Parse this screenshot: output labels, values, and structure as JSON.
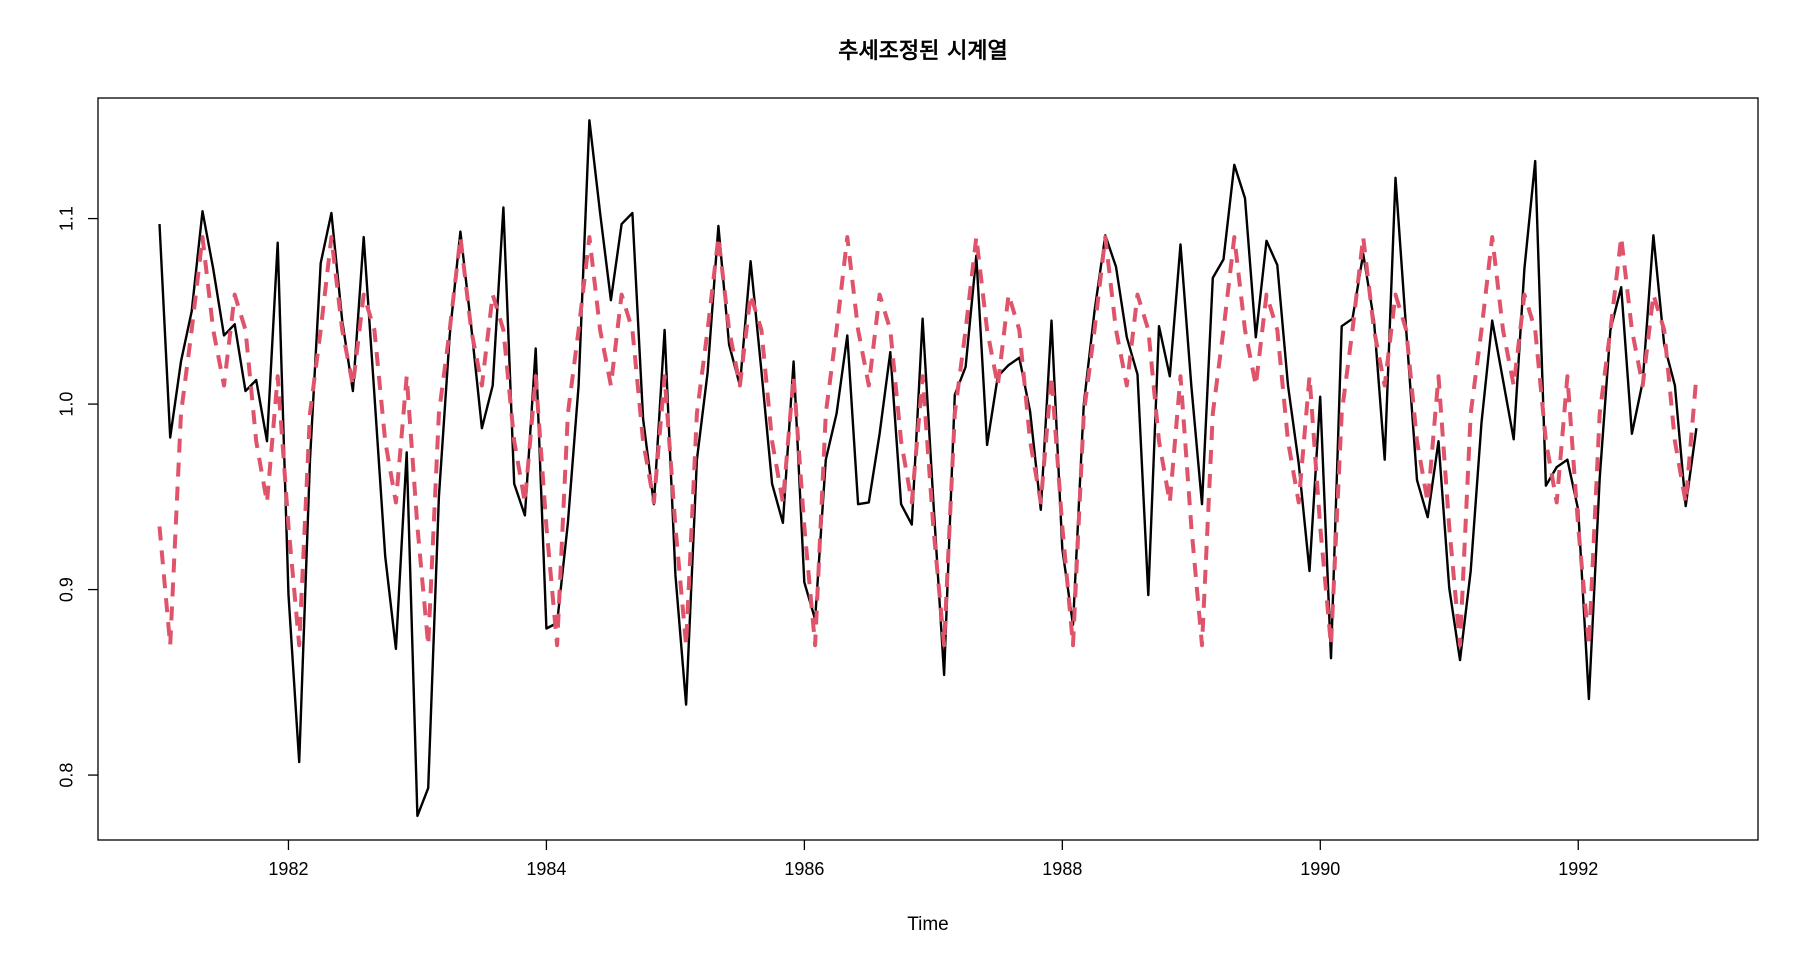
{
  "chart_data": {
    "type": "line",
    "title": "추세조정된 시계열",
    "xlabel": "Time",
    "ylabel": "",
    "xlim": [
      1981.0,
      1992.917
    ],
    "ylim": [
      0.765,
      1.165
    ],
    "x_ticks": [
      1982,
      1984,
      1986,
      1988,
      1990,
      1992
    ],
    "x_tick_labels": [
      "1982",
      "1984",
      "1986",
      "1988",
      "1990",
      "1992"
    ],
    "y_ticks": [
      0.8,
      0.9,
      1.0,
      1.1
    ],
    "y_tick_labels": [
      "0.8",
      "0.9",
      "1.0",
      "1.1"
    ],
    "grid": false,
    "legend": "none",
    "x_start": 1981.0,
    "x_step": 0.08333,
    "series": [
      {
        "style": "solid",
        "color": "#000000",
        "values": [
          1.097,
          0.982,
          1.023,
          1.05,
          1.104,
          1.073,
          1.037,
          1.043,
          1.007,
          1.013,
          0.98,
          1.087,
          0.897,
          0.807,
          0.97,
          1.076,
          1.103,
          1.045,
          1.007,
          1.09,
          1.005,
          0.918,
          0.868,
          0.974,
          0.778,
          0.793,
          0.95,
          1.037,
          1.093,
          1.042,
          0.987,
          1.01,
          1.106,
          0.957,
          0.94,
          1.03,
          0.879,
          0.882,
          0.936,
          1.01,
          1.153,
          1.103,
          1.056,
          1.097,
          1.103,
          0.992,
          0.946,
          1.04,
          0.908,
          0.838,
          0.97,
          1.017,
          1.096,
          1.032,
          1.01,
          1.077,
          1.018,
          0.957,
          0.936,
          1.023,
          0.904,
          0.884,
          0.97,
          0.995,
          1.037,
          0.946,
          0.947,
          0.984,
          1.028,
          0.946,
          0.935,
          1.046,
          0.948,
          0.854,
          1.005,
          1.02,
          1.08,
          0.978,
          1.015,
          1.021,
          1.025,
          0.996,
          0.943,
          1.045,
          0.922,
          0.881,
          1.0,
          1.05,
          1.091,
          1.074,
          1.036,
          1.016,
          0.897,
          1.042,
          1.015,
          1.086,
          1.01,
          0.946,
          1.068,
          1.078,
          1.129,
          1.111,
          1.036,
          1.088,
          1.075,
          1.01,
          0.968,
          0.91,
          1.004,
          0.863,
          1.042,
          1.046,
          1.081,
          1.045,
          0.97,
          1.122,
          1.04,
          0.959,
          0.939,
          0.98,
          0.901,
          0.862,
          0.91,
          0.99,
          1.045,
          1.013,
          0.981,
          1.073,
          1.131,
          0.956,
          0.966,
          0.97,
          0.943,
          0.841,
          0.96,
          1.04,
          1.063,
          0.984,
          1.012,
          1.091,
          1.032,
          1.01,
          0.945,
          0.987
        ]
      },
      {
        "style": "dashed",
        "color": "#DF536B",
        "values": [
          0.934,
          0.87,
          0.995,
          1.04,
          1.09,
          1.04,
          1.01,
          1.059,
          1.04,
          0.98,
          0.947,
          1.015,
          0.934,
          0.87,
          0.995,
          1.04,
          1.09,
          1.04,
          1.01,
          1.059,
          1.04,
          0.98,
          0.947,
          1.015,
          0.934,
          0.87,
          0.995,
          1.04,
          1.09,
          1.04,
          1.01,
          1.059,
          1.04,
          0.98,
          0.947,
          1.015,
          0.934,
          0.87,
          0.995,
          1.04,
          1.09,
          1.04,
          1.01,
          1.059,
          1.04,
          0.98,
          0.947,
          1.015,
          0.934,
          0.87,
          0.995,
          1.04,
          1.09,
          1.04,
          1.01,
          1.059,
          1.04,
          0.98,
          0.947,
          1.015,
          0.934,
          0.87,
          0.995,
          1.04,
          1.09,
          1.04,
          1.01,
          1.059,
          1.04,
          0.98,
          0.947,
          1.015,
          0.934,
          0.87,
          0.995,
          1.04,
          1.09,
          1.04,
          1.01,
          1.059,
          1.04,
          0.98,
          0.947,
          1.015,
          0.934,
          0.87,
          0.995,
          1.04,
          1.09,
          1.04,
          1.01,
          1.059,
          1.04,
          0.98,
          0.947,
          1.015,
          0.934,
          0.87,
          0.995,
          1.04,
          1.09,
          1.04,
          1.01,
          1.059,
          1.04,
          0.98,
          0.947,
          1.015,
          0.934,
          0.87,
          0.995,
          1.04,
          1.09,
          1.04,
          1.01,
          1.059,
          1.04,
          0.98,
          0.947,
          1.015,
          0.934,
          0.87,
          0.995,
          1.04,
          1.09,
          1.04,
          1.01,
          1.059,
          1.04,
          0.98,
          0.947,
          1.015,
          0.934,
          0.87,
          0.995,
          1.04,
          1.09,
          1.04,
          1.01,
          1.059,
          1.04,
          0.98,
          0.947,
          1.015
        ]
      }
    ]
  }
}
